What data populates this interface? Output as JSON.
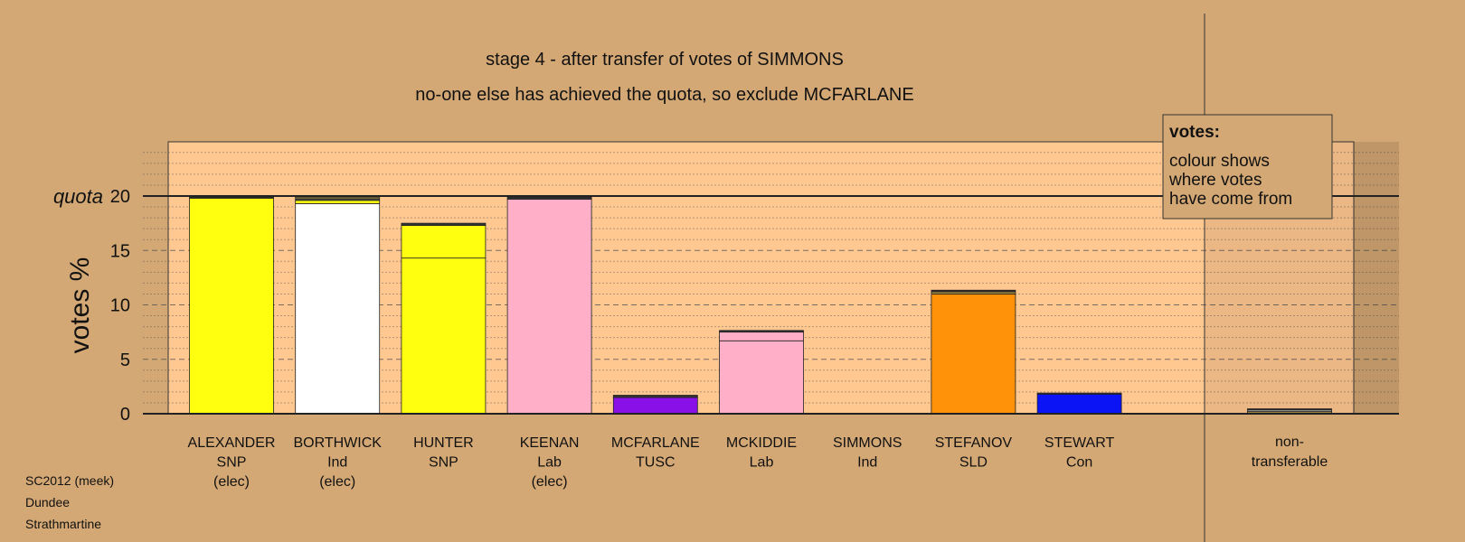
{
  "chart_data": {
    "type": "bar",
    "stacked": true,
    "title": "stage 4 - after transfer of votes of SIMMONS",
    "subtitle": "no-one else has achieved the quota, so exclude MCFARLANE",
    "ylabel": "votes %",
    "quota_label": "quota",
    "quota": 20,
    "ylim": [
      0,
      25
    ],
    "yticks": [
      0,
      5,
      10,
      15,
      20
    ],
    "grid": true,
    "candidates": [
      {
        "name": "ALEXANDER",
        "party": "SNP",
        "status": "(elec)",
        "segments": [
          {
            "value": 19.8,
            "color": "#ffff10"
          },
          {
            "value": 0.1,
            "color": "#333333"
          }
        ]
      },
      {
        "name": "BORTHWICK",
        "party": "Ind",
        "status": "(elec)",
        "segments": [
          {
            "value": 19.3,
            "color": "#ffffff"
          },
          {
            "value": 0.3,
            "color": "#ffff10"
          },
          {
            "value": 0.15,
            "color": "#555555"
          },
          {
            "value": 0.15,
            "color": "#aa9040"
          }
        ]
      },
      {
        "name": "HUNTER",
        "party": "SNP",
        "status": "",
        "segments": [
          {
            "value": 14.3,
            "color": "#ffff10"
          },
          {
            "value": 3.0,
            "color": "#ffff10"
          },
          {
            "value": 0.2,
            "color": "#333333"
          }
        ]
      },
      {
        "name": "KEENAN",
        "party": "Lab",
        "status": "(elec)",
        "segments": [
          {
            "value": 19.7,
            "color": "#ffb0c8"
          },
          {
            "value": 0.2,
            "color": "#333333"
          }
        ]
      },
      {
        "name": "MCFARLANE",
        "party": "TUSC",
        "status": "",
        "segments": [
          {
            "value": 1.5,
            "color": "#8a10e8"
          },
          {
            "value": 0.2,
            "color": "#333333"
          }
        ]
      },
      {
        "name": "MCKIDDIE",
        "party": "Lab",
        "status": "",
        "segments": [
          {
            "value": 6.7,
            "color": "#ffb0c8"
          },
          {
            "value": 0.8,
            "color": "#ffb0c8"
          },
          {
            "value": 0.15,
            "color": "#333333"
          }
        ]
      },
      {
        "name": "SIMMONS",
        "party": "Ind",
        "status": "",
        "segments": []
      },
      {
        "name": "STEFANOV",
        "party": "SLD",
        "status": "",
        "segments": [
          {
            "value": 11.0,
            "color": "#ff9208"
          },
          {
            "value": 0.2,
            "color": "#aa9040"
          },
          {
            "value": 0.15,
            "color": "#333333"
          }
        ]
      },
      {
        "name": "STEWART",
        "party": "Con",
        "status": "",
        "segments": [
          {
            "value": 1.8,
            "color": "#0a14f5"
          },
          {
            "value": 0.1,
            "color": "#333333"
          }
        ]
      }
    ],
    "non_transferable": {
      "label_line1": "non-",
      "label_line2": "transferable",
      "segments": [
        {
          "value": 0.2,
          "color": "#aa9040"
        },
        {
          "value": 0.15,
          "color": "#cccccc"
        },
        {
          "value": 0.1,
          "color": "#333333"
        }
      ]
    },
    "legend": {
      "title": "votes:",
      "lines": [
        "colour shows",
        "where votes",
        "have come from"
      ]
    }
  },
  "footer": {
    "line1": "SC2012 (meek)",
    "line2": "Dundee",
    "line3": "Strathmartine"
  }
}
